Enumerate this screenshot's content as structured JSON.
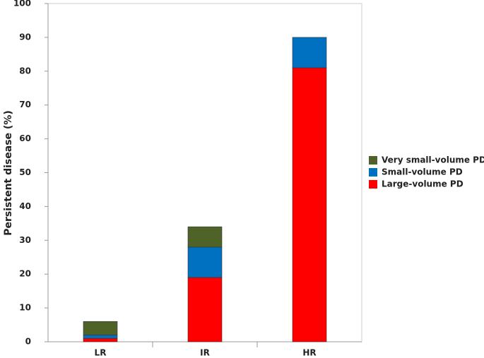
{
  "chart_data": {
    "type": "stacked-bar",
    "y_label": "Persistent disease (%)",
    "categories": [
      "LR",
      "IR",
      "HR"
    ],
    "series": [
      {
        "name": "Very small-volume PD",
        "color": "#4f6228",
        "values": [
          4,
          6,
          0
        ]
      },
      {
        "name": "Small-volume PD",
        "color": "#0070c0",
        "values": [
          1,
          9,
          9
        ]
      },
      {
        "name": "Large-volume PD",
        "color": "#ff0000",
        "values": [
          1,
          19,
          81
        ]
      }
    ],
    "ylim": [
      0,
      100
    ],
    "yticks": [
      0,
      10,
      20,
      30,
      40,
      50,
      60,
      70,
      80,
      90,
      100
    ],
    "legend": "right"
  }
}
